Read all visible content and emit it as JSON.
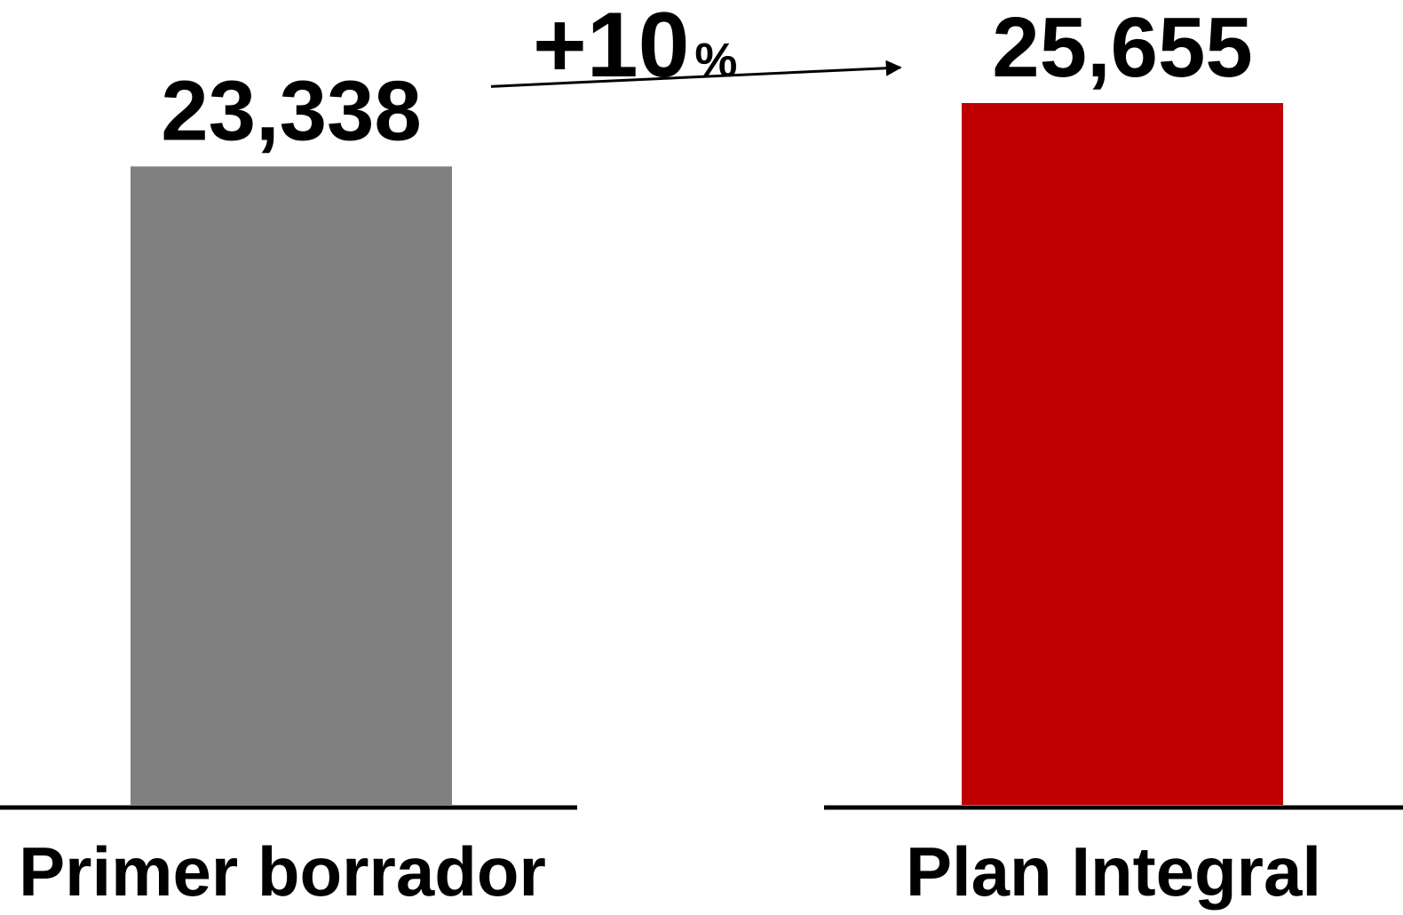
{
  "chart_data": {
    "type": "bar",
    "categories": [
      "Primer borrador",
      "Plan Integral"
    ],
    "values": [
      23338,
      25655
    ],
    "value_labels": [
      "23,338",
      "25,655"
    ],
    "colors": [
      "#808080",
      "#C00000"
    ],
    "title": "",
    "xlabel": "",
    "ylabel": "",
    "ylim": [
      0,
      25655
    ],
    "grid": false,
    "legend": "none",
    "annotation": {
      "from_category": "Primer borrador",
      "to_category": "Plan Integral",
      "label_main": "+10",
      "label_unit": "%"
    }
  }
}
